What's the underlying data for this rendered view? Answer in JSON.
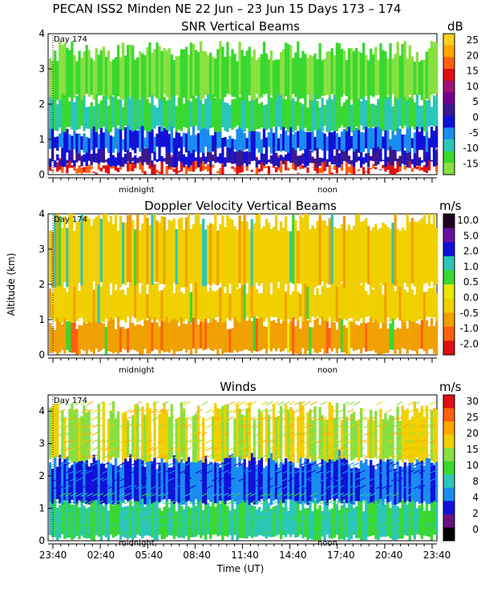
{
  "page_title": "PECAN ISS2 Minden NE  22 Jun – 23 Jun 15 Days 173 – 174",
  "time_axis": {
    "xlabel": "Time (UT)",
    "ticks": [
      "23:40",
      "02:40",
      "05:40",
      "08:40",
      "11:40",
      "14:40",
      "17:40",
      "20:40",
      "23:40"
    ],
    "midnight_label": "midnight",
    "noon_label": "noon",
    "day_marker": "Day 174"
  },
  "colors": {
    "snr": [
      "#88e040",
      "#38d830",
      "#2bc6b8",
      "#1a8cf0",
      "#1010d8",
      "#3a1890",
      "#700090",
      "#a01070",
      "#e01010",
      "#ff6010",
      "#ffa500",
      "#ffd020"
    ],
    "doppler": [
      "#e01010",
      "#ff6010",
      "#f0a000",
      "#f0d000",
      "#e8e800",
      "#38d830",
      "#2bc6b8",
      "#1010d8",
      "#6a10a0",
      "#200020"
    ],
    "wind": [
      "#000000",
      "#6a1080",
      "#1010d8",
      "#1a8cf0",
      "#2bc6b8",
      "#38d830",
      "#88e040",
      "#f0d000",
      "#ffa500",
      "#ff6010",
      "#e01010"
    ]
  },
  "chart_data": [
    {
      "type": "heatmap",
      "title": "SNR Vertical Beams",
      "ylabel": "",
      "ylim": [
        0,
        4
      ],
      "yticks": [
        "0",
        "1",
        "2",
        "3",
        "4"
      ],
      "colorbar": {
        "unit": "dB",
        "labels": [
          "25",
          "20",
          "15",
          "10",
          "5",
          "0",
          "-5",
          "-10",
          "-15"
        ]
      },
      "layers": [
        {
          "altitude_km": [
            0.1,
            0.3
          ],
          "value_db": 10
        },
        {
          "altitude_km": [
            0.3,
            0.7
          ],
          "value_db": 0
        },
        {
          "altitude_km": [
            0.7,
            1.3
          ],
          "value_db": -5
        },
        {
          "altitude_km": [
            1.3,
            2.2
          ],
          "value_db": -12
        },
        {
          "altitude_km": [
            2.2,
            3.5
          ],
          "value_db": -10
        }
      ]
    },
    {
      "type": "heatmap",
      "title": "Doppler Velocity Vertical Beams",
      "ylabel": "Altitude (km)",
      "ylim": [
        0,
        4
      ],
      "yticks": [
        "0",
        "1",
        "2",
        "3",
        "4"
      ],
      "colorbar": {
        "unit": "m/s",
        "labels": [
          "10.0",
          "5.0",
          "2.0",
          "1.0",
          "0.5",
          "0.0",
          "-0.5",
          "-1.0",
          "-2.0"
        ]
      },
      "layers": [
        {
          "altitude_km": [
            0.1,
            1.0
          ],
          "value_ms": -0.5
        },
        {
          "altitude_km": [
            1.0,
            2.0
          ],
          "value_ms": 0.0
        },
        {
          "altitude_km": [
            2.0,
            3.8
          ],
          "value_ms": 0.0
        }
      ]
    },
    {
      "type": "heatmap",
      "title": "Winds",
      "ylabel": "",
      "ylim": [
        0,
        4.5
      ],
      "yticks": [
        "0",
        "1",
        "2",
        "3",
        "4"
      ],
      "colorbar": {
        "unit": "m/s",
        "labels": [
          "30",
          "25",
          "20",
          "15",
          "10",
          "8",
          "4",
          "2",
          "0"
        ]
      },
      "layers": [
        {
          "altitude_km": [
            0.1,
            1.2
          ],
          "speed_ms": 12
        },
        {
          "altitude_km": [
            1.2,
            2.5
          ],
          "speed_ms": 4
        },
        {
          "altitude_km": [
            2.5,
            4.0
          ],
          "speed_ms": 18
        }
      ]
    }
  ]
}
